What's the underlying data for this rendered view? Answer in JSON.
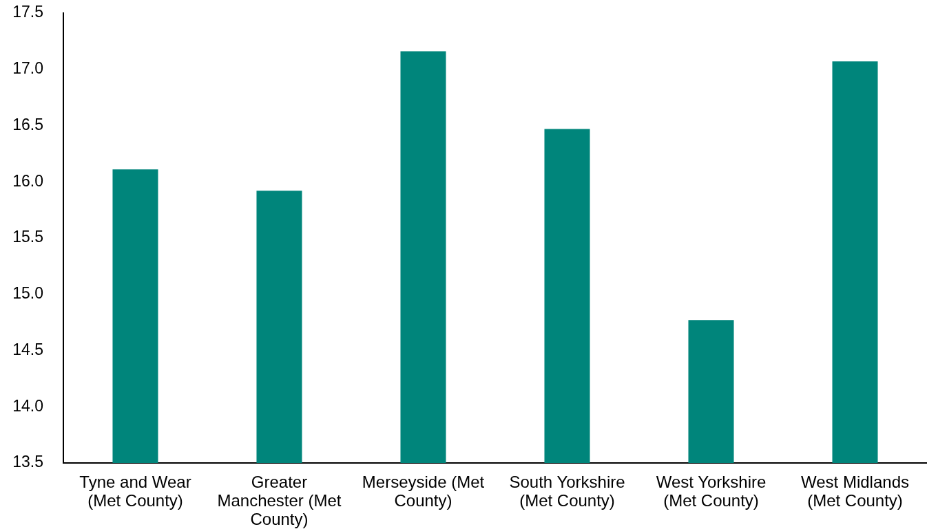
{
  "chart_data": {
    "type": "bar",
    "categories": [
      "Tyne and Wear (Met County)",
      "Greater Manchester (Met County)",
      "Merseyside (Met County)",
      "South Yorkshire (Met County)",
      "West Yorkshire (Met County)",
      "West Midlands (Met County)"
    ],
    "values": [
      16.11,
      15.92,
      17.16,
      16.47,
      14.77,
      17.07
    ],
    "color": "#00857b",
    "ylim": [
      13.5,
      17.5
    ],
    "yticks": [
      13.5,
      {
        "value": 14,
        "label": "14.0"
      },
      14.5,
      {
        "value": 15,
        "label": "15.0"
      },
      15.5,
      {
        "value": 16,
        "label": "16.0"
      },
      16.5,
      {
        "value": 17,
        "label": "17.0"
      },
      17.5
    ]
  }
}
